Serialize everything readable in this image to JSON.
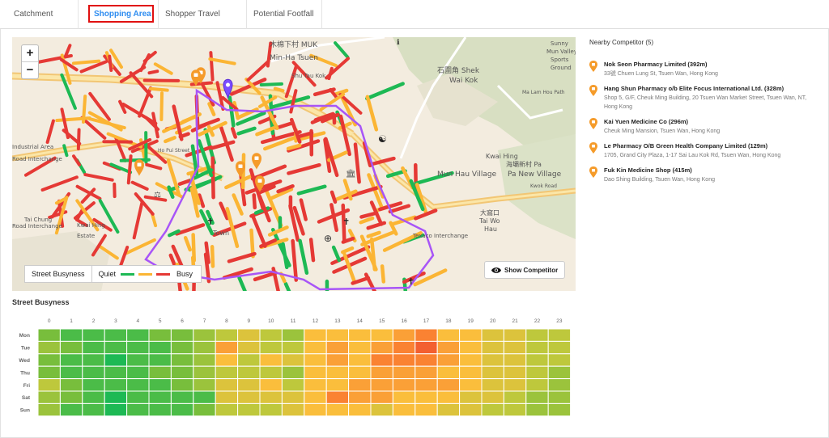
{
  "tabs": [
    {
      "label": "Catchment Area",
      "active": false
    },
    {
      "label": "Shopping Area",
      "active": true
    },
    {
      "label": "Shopper Travel Pattern",
      "active": false
    },
    {
      "label": "Potential Footfall",
      "active": false
    }
  ],
  "map": {
    "zoom_in": "+",
    "zoom_out": "−",
    "labels": [
      "木棉下村 MUK",
      "Min-Ha Tsuen",
      "Shu Tau Kok",
      "石圍角 Shek",
      "Wai Kok",
      "Sunny",
      "Mun Valley",
      "Sports",
      "Ground",
      "Ho Pui Street",
      "Ma Lam Hou Path",
      "Kwai Hing",
      "Mun Hau Village",
      "海壩新村 Pa",
      "Pa New Village",
      "Kwok Road",
      "Tai Wo",
      "Hau",
      "大窩口",
      "Texaco Interchange",
      "Town",
      "Tai Chung",
      "Road Interchange",
      "Kwai Hing",
      "Estate",
      "Industrial Area",
      "Road Interchange"
    ],
    "colors": {
      "route_purple": "#a855f7",
      "pin_orange": "#f59b2a",
      "quiet": "#1db954",
      "moderate": "#fbb534",
      "busy": "#e53935"
    }
  },
  "legend": {
    "title": "Street Busyness",
    "quiet": "Quiet",
    "busy": "Busy"
  },
  "show_competitor": "Show Competitor",
  "competitors": {
    "title": "Nearby Competitor (5)",
    "items": [
      {
        "name": "Nok Seon Pharmacy Limited (392m)",
        "address": "33號 Chuen Lung St, Tsuen Wan, Hong Kong"
      },
      {
        "name": "Hang Shun Pharmacy o/b Elite Focus International Ltd. (328m)",
        "address": "Shop 5, G/F, Cheuk Ming Building, 20 Tsuen Wan Market Street, Tsuen Wan, NT, Hong Kong"
      },
      {
        "name": "Kai Yuen Medicine Co (296m)",
        "address": "Cheuk Ming Mansion, Tsuen Wan, Hong Kong"
      },
      {
        "name": "Le Pharmacy O/B Green Health Company Limited (129m)",
        "address": "1705, Grand City Plaza, 1-17 Sai Lau Kok Rd, Tsuen Wan, Hong Kong"
      },
      {
        "name": "Fuk Kin Medicine Shop (415m)",
        "address": "Dao Shing Building, Tsuen Wan, Hong Kong"
      }
    ]
  },
  "heatmap_title": "Street Busyness",
  "chart_data": {
    "type": "heatmap",
    "x": [
      "0",
      "1",
      "2",
      "3",
      "4",
      "5",
      "6",
      "7",
      "8",
      "9",
      "10",
      "11",
      "12",
      "13",
      "14",
      "15",
      "16",
      "17",
      "18",
      "19",
      "20",
      "21",
      "22",
      "23"
    ],
    "y": [
      "Mon",
      "Tue",
      "Wed",
      "Thu",
      "Fri",
      "Sat",
      "Sun"
    ],
    "scale": "busyness 0 (quiet, green) to 10 (busy, red)",
    "values": [
      [
        2,
        1,
        1,
        1,
        1,
        2,
        2,
        3,
        4,
        5,
        4,
        3,
        6,
        6,
        6,
        6,
        7,
        8,
        6,
        6,
        5,
        5,
        4,
        4
      ],
      [
        3,
        2,
        1,
        1,
        1,
        1,
        2,
        3,
        7,
        5,
        4,
        4,
        6,
        7,
        6,
        7,
        8,
        9,
        7,
        6,
        5,
        5,
        4,
        4
      ],
      [
        2,
        1,
        1,
        0,
        1,
        1,
        2,
        3,
        6,
        4,
        6,
        5,
        6,
        7,
        6,
        8,
        8,
        8,
        7,
        6,
        5,
        5,
        4,
        4
      ],
      [
        2,
        1,
        1,
        1,
        1,
        2,
        2,
        3,
        4,
        4,
        4,
        3,
        6,
        6,
        6,
        7,
        7,
        7,
        6,
        6,
        5,
        5,
        4,
        3
      ],
      [
        4,
        2,
        1,
        1,
        1,
        1,
        2,
        3,
        5,
        5,
        6,
        4,
        6,
        6,
        7,
        7,
        7,
        7,
        7,
        6,
        5,
        5,
        4,
        3
      ],
      [
        3,
        2,
        1,
        0,
        1,
        1,
        1,
        1,
        5,
        5,
        5,
        5,
        6,
        8,
        7,
        7,
        6,
        6,
        6,
        5,
        5,
        4,
        3,
        3
      ],
      [
        3,
        1,
        1,
        0,
        1,
        1,
        1,
        2,
        4,
        4,
        4,
        5,
        6,
        6,
        6,
        5,
        6,
        6,
        5,
        5,
        4,
        4,
        3,
        3
      ]
    ]
  }
}
